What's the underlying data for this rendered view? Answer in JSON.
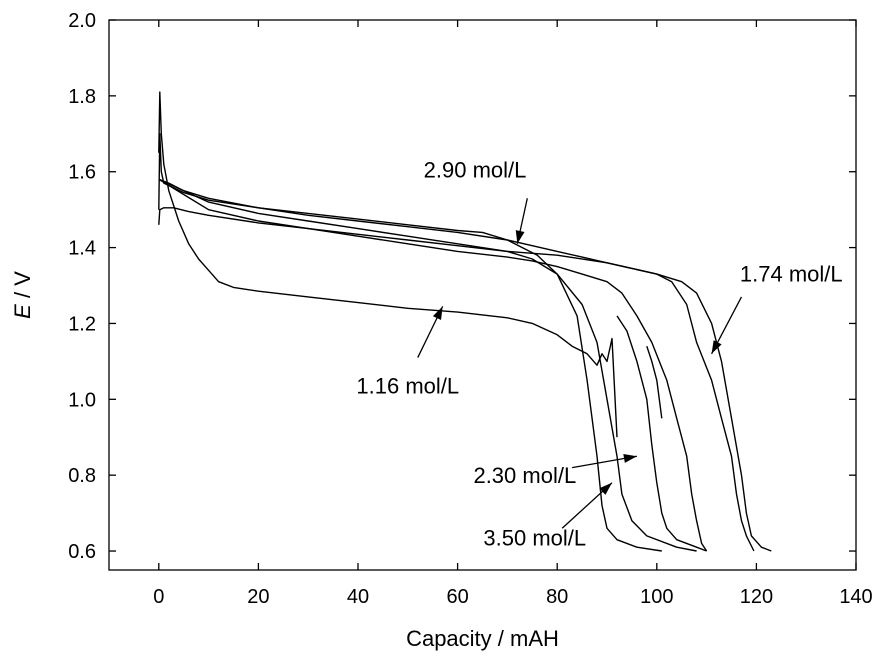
{
  "chart_data": {
    "type": "line",
    "title": "",
    "xlabel": "Capacity / mAH",
    "ylabel_italic": "E",
    "ylabel_rest": " / V",
    "xlim": [
      -10,
      140
    ],
    "ylim": [
      0.55,
      2.0
    ],
    "xticks": [
      0,
      20,
      40,
      60,
      80,
      100,
      120,
      140
    ],
    "yticks": [
      0.6,
      0.8,
      1.0,
      1.2,
      1.4,
      1.6,
      1.8,
      2.0
    ],
    "xtick_labels": [
      "0",
      "20",
      "40",
      "60",
      "80",
      "100",
      "120",
      "140"
    ],
    "ytick_labels": [
      "0.6",
      "0.8",
      "1.0",
      "1.2",
      "1.4",
      "1.6",
      "1.8",
      "2.0"
    ],
    "grid": false,
    "legend": "none",
    "line_color": "#000000",
    "series": [
      {
        "points": [
          [
            0,
            1.46
          ],
          [
            0.2,
            1.5
          ],
          [
            1,
            1.505
          ],
          [
            3,
            1.505
          ],
          [
            6,
            1.495
          ],
          [
            10,
            1.485
          ],
          [
            20,
            1.465
          ],
          [
            30,
            1.45
          ],
          [
            40,
            1.435
          ],
          [
            50,
            1.42
          ],
          [
            60,
            1.405
          ],
          [
            70,
            1.39
          ],
          [
            75,
            1.37
          ],
          [
            80,
            1.33
          ],
          [
            85,
            1.25
          ],
          [
            88,
            1.15
          ],
          [
            90,
            1.0
          ],
          [
            92,
            0.85
          ],
          [
            93,
            0.75
          ],
          [
            95,
            0.68
          ],
          [
            98,
            0.64
          ],
          [
            104,
            0.61
          ],
          [
            108,
            0.6
          ]
        ]
      },
      {
        "points": [
          [
            0,
            1.5
          ],
          [
            0.2,
            1.7
          ],
          [
            0.5,
            1.6
          ],
          [
            1,
            1.57
          ],
          [
            5,
            1.545
          ],
          [
            10,
            1.525
          ],
          [
            20,
            1.505
          ],
          [
            30,
            1.49
          ],
          [
            40,
            1.475
          ],
          [
            50,
            1.46
          ],
          [
            60,
            1.445
          ],
          [
            65,
            1.44
          ],
          [
            70,
            1.42
          ],
          [
            73,
            1.4
          ],
          [
            76,
            1.38
          ],
          [
            80,
            1.33
          ],
          [
            84,
            1.22
          ],
          [
            86,
            1.05
          ],
          [
            88,
            0.85
          ],
          [
            89,
            0.72
          ],
          [
            90,
            0.66
          ],
          [
            92,
            0.63
          ],
          [
            96,
            0.61
          ],
          [
            101,
            0.6
          ]
        ]
      },
      {
        "points": [
          [
            0,
            1.65
          ],
          [
            0.2,
            1.81
          ],
          [
            0.5,
            1.7
          ],
          [
            1,
            1.62
          ],
          [
            2,
            1.55
          ],
          [
            4,
            1.47
          ],
          [
            6,
            1.41
          ],
          [
            8,
            1.37
          ],
          [
            10,
            1.34
          ],
          [
            12,
            1.31
          ],
          [
            15,
            1.295
          ],
          [
            20,
            1.285
          ],
          [
            30,
            1.27
          ],
          [
            40,
            1.255
          ],
          [
            50,
            1.24
          ],
          [
            60,
            1.23
          ],
          [
            70,
            1.215
          ],
          [
            75,
            1.2
          ],
          [
            80,
            1.17
          ],
          [
            83,
            1.14
          ],
          [
            86,
            1.12
          ],
          [
            88,
            1.09
          ],
          [
            89,
            1.12
          ],
          [
            90,
            1.1
          ],
          [
            91,
            1.16
          ],
          [
            92,
            0.9
          ]
        ]
      },
      {
        "points": [
          [
            0,
            1.58
          ],
          [
            2,
            1.57
          ],
          [
            5,
            1.55
          ],
          [
            10,
            1.53
          ],
          [
            20,
            1.505
          ],
          [
            30,
            1.485
          ],
          [
            40,
            1.47
          ],
          [
            50,
            1.455
          ],
          [
            60,
            1.44
          ],
          [
            70,
            1.42
          ],
          [
            75,
            1.405
          ],
          [
            80,
            1.39
          ],
          [
            85,
            1.375
          ],
          [
            90,
            1.36
          ],
          [
            95,
            1.345
          ],
          [
            100,
            1.33
          ],
          [
            105,
            1.31
          ],
          [
            108,
            1.28
          ],
          [
            111,
            1.2
          ],
          [
            113,
            1.1
          ],
          [
            115,
            0.95
          ],
          [
            117,
            0.8
          ],
          [
            118,
            0.7
          ],
          [
            119,
            0.64
          ],
          [
            121,
            0.61
          ],
          [
            123,
            0.6
          ]
        ]
      },
      {
        "points": [
          [
            0,
            1.58
          ],
          [
            5,
            1.55
          ],
          [
            10,
            1.52
          ],
          [
            20,
            1.49
          ],
          [
            30,
            1.47
          ],
          [
            40,
            1.45
          ],
          [
            50,
            1.43
          ],
          [
            60,
            1.41
          ],
          [
            70,
            1.39
          ],
          [
            80,
            1.38
          ],
          [
            90,
            1.36
          ],
          [
            95,
            1.345
          ],
          [
            100,
            1.33
          ],
          [
            103,
            1.31
          ],
          [
            106,
            1.25
          ],
          [
            108,
            1.15
          ],
          [
            111,
            1.05
          ],
          [
            113,
            0.95
          ],
          [
            115,
            0.85
          ],
          [
            116,
            0.75
          ],
          [
            117,
            0.68
          ],
          [
            118,
            0.64
          ],
          [
            119.5,
            0.6
          ]
        ]
      },
      {
        "points": [
          [
            0,
            1.58
          ],
          [
            5,
            1.54
          ],
          [
            10,
            1.5
          ],
          [
            20,
            1.47
          ],
          [
            30,
            1.45
          ],
          [
            40,
            1.43
          ],
          [
            50,
            1.41
          ],
          [
            60,
            1.39
          ],
          [
            70,
            1.375
          ],
          [
            75,
            1.365
          ],
          [
            80,
            1.35
          ],
          [
            85,
            1.33
          ],
          [
            90,
            1.31
          ],
          [
            93,
            1.28
          ],
          [
            96,
            1.22
          ],
          [
            99,
            1.15
          ],
          [
            102,
            1.05
          ],
          [
            104,
            0.95
          ],
          [
            106,
            0.85
          ],
          [
            107,
            0.75
          ],
          [
            108,
            0.68
          ],
          [
            109,
            0.62
          ],
          [
            110,
            0.6
          ]
        ]
      },
      {
        "points": [
          [
            92,
            1.22
          ],
          [
            94,
            1.18
          ],
          [
            96,
            1.1
          ],
          [
            98,
            1.0
          ],
          [
            99,
            0.88
          ],
          [
            100,
            0.78
          ],
          [
            101,
            0.7
          ],
          [
            102,
            0.66
          ],
          [
            104,
            0.63
          ],
          [
            108,
            0.61
          ],
          [
            110,
            0.6
          ]
        ]
      },
      {
        "points": [
          [
            98,
            1.14
          ],
          [
            99,
            1.1
          ],
          [
            100,
            1.05
          ],
          [
            101,
            0.95
          ]
        ]
      }
    ],
    "annotations": [
      {
        "text": "2.90 mol/L",
        "x": 63.5,
        "y": 1.585,
        "arrow_from": [
          74,
          1.53
        ],
        "arrow_to": [
          72,
          1.41
        ]
      },
      {
        "text": "1.74 mol/L",
        "x": 127,
        "y": 1.31,
        "arrow_from": [
          117,
          1.27
        ],
        "arrow_to": [
          111,
          1.12
        ]
      },
      {
        "text": "1.16 mol/L",
        "x": 50,
        "y": 1.015,
        "arrow_from": [
          52,
          1.11
        ],
        "arrow_to": [
          57,
          1.245
        ]
      },
      {
        "text": "2.30 mol/L",
        "x": 73.5,
        "y": 0.78,
        "arrow_from": [
          83,
          0.82
        ],
        "arrow_to": [
          96,
          0.85
        ]
      },
      {
        "text": "3.50 mol/L",
        "x": 75.5,
        "y": 0.615,
        "arrow_from": [
          81,
          0.66
        ],
        "arrow_to": [
          91,
          0.78
        ]
      }
    ]
  }
}
